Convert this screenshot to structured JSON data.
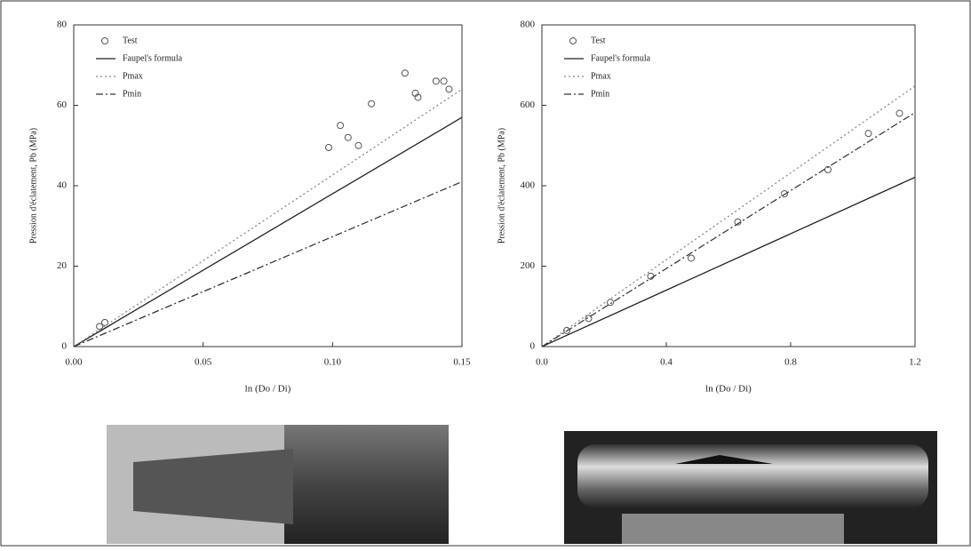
{
  "chart_data": [
    {
      "type": "line",
      "xlabel": "ln (Do / Di)",
      "ylabel": "Pression d'éclatement, Pb (MPa)",
      "xlim": [
        0,
        0.15
      ],
      "ylim": [
        0,
        80
      ],
      "xticks": [
        {
          "value": 0,
          "label": "0.00"
        },
        0.05,
        {
          "value": 0.1,
          "label": "0.10"
        },
        0.15
      ],
      "yticks": [
        0,
        20,
        40,
        60,
        80
      ],
      "series": [
        {
          "name": "Test",
          "mode": "markers",
          "color": "#555555",
          "x": [
            0.01,
            0.012,
            0.0985,
            0.103,
            0.106,
            0.11,
            0.115,
            0.128,
            0.132,
            0.133,
            0.14,
            0.143,
            0.145
          ],
          "values": [
            5,
            6,
            49.5,
            55,
            52,
            50,
            60.4,
            68,
            63,
            62,
            66,
            66,
            64
          ]
        },
        {
          "name": "Faupel's formula",
          "mode": "lines",
          "dash": "solid",
          "color": "#222222",
          "x": [
            0,
            0.15
          ],
          "values": [
            0,
            57
          ]
        },
        {
          "name": "Pmax",
          "mode": "lines",
          "dash": "dotted",
          "color": "#888888",
          "x": [
            0,
            0.15
          ],
          "values": [
            0,
            64
          ]
        },
        {
          "name": "Pmin",
          "mode": "lines",
          "dash": "dashdot",
          "color": "#333333",
          "x": [
            0,
            0.15
          ],
          "values": [
            0,
            41
          ]
        }
      ]
    },
    {
      "type": "line",
      "xlabel": "ln (Do / Di)",
      "ylabel": "Pression d'éclatement, Pb (MPa)",
      "xlim": [
        0,
        1.2
      ],
      "ylim": [
        0,
        800
      ],
      "xticks": [
        {
          "value": 0,
          "label": "0.0"
        },
        0.4,
        0.8,
        1.2
      ],
      "yticks": [
        0,
        200,
        400,
        600,
        800
      ],
      "series": [
        {
          "name": "Test",
          "mode": "markers",
          "color": "#555555",
          "x": [
            0.08,
            0.15,
            0.22,
            0.35,
            0.48,
            0.63,
            0.78,
            0.92,
            1.05,
            1.15
          ],
          "values": [
            40,
            70,
            110,
            175,
            220,
            310,
            380,
            440,
            530,
            580
          ]
        },
        {
          "name": "Faupel's formula",
          "mode": "lines",
          "dash": "solid",
          "color": "#222222",
          "x": [
            0,
            1.2
          ],
          "values": [
            0,
            421
          ]
        },
        {
          "name": "Pmax",
          "mode": "lines",
          "dash": "dotted",
          "color": "#888888",
          "x": [
            0,
            1.2
          ],
          "values": [
            0,
            648
          ]
        },
        {
          "name": "Pmin",
          "mode": "lines",
          "dash": "dashdot",
          "color": "#333333",
          "x": [
            0,
            1.2
          ],
          "values": [
            0,
            582
          ]
        }
      ]
    }
  ]
}
